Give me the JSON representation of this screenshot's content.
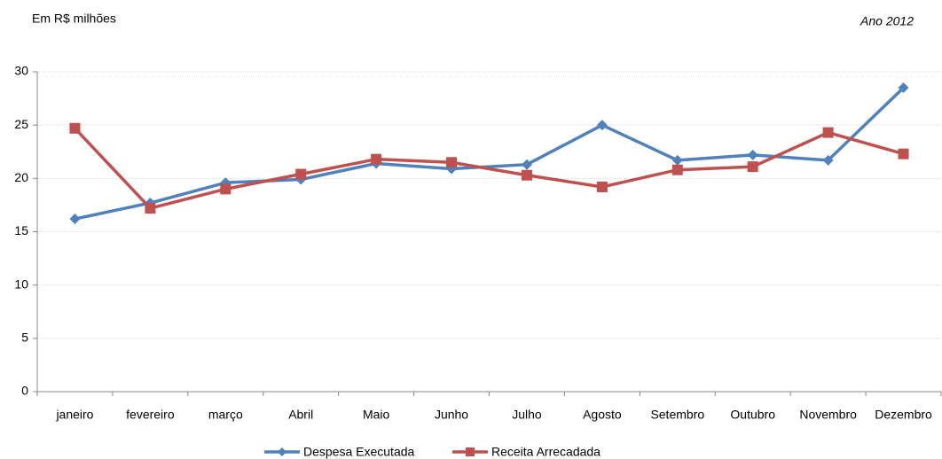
{
  "chart_data": {
    "type": "line",
    "title": "Em R$ milhões",
    "subtitle": "Ano 2012",
    "categories": [
      "janeiro",
      "fevereiro",
      "março",
      "Abril",
      "Maio",
      "Junho",
      "Julho",
      "Agosto",
      "Setembro",
      "Outubro",
      "Novembro",
      "Dezembro"
    ],
    "series": [
      {
        "name": "Despesa Executada",
        "color": "#4f81bd",
        "marker": "diamond",
        "values": [
          16.2,
          17.7,
          19.6,
          19.9,
          21.4,
          20.9,
          21.3,
          25.0,
          21.7,
          22.2,
          21.7,
          28.5
        ]
      },
      {
        "name": "Receita Arrecadada",
        "color": "#c0504d",
        "marker": "square",
        "values": [
          24.7,
          17.2,
          19.0,
          20.4,
          21.8,
          21.5,
          20.3,
          19.2,
          20.8,
          21.1,
          24.3,
          22.3
        ]
      }
    ],
    "ylim": [
      0,
      30
    ],
    "yticks": [
      0,
      5,
      10,
      15,
      20,
      25,
      30
    ],
    "grid": true,
    "legend": "bottom"
  }
}
